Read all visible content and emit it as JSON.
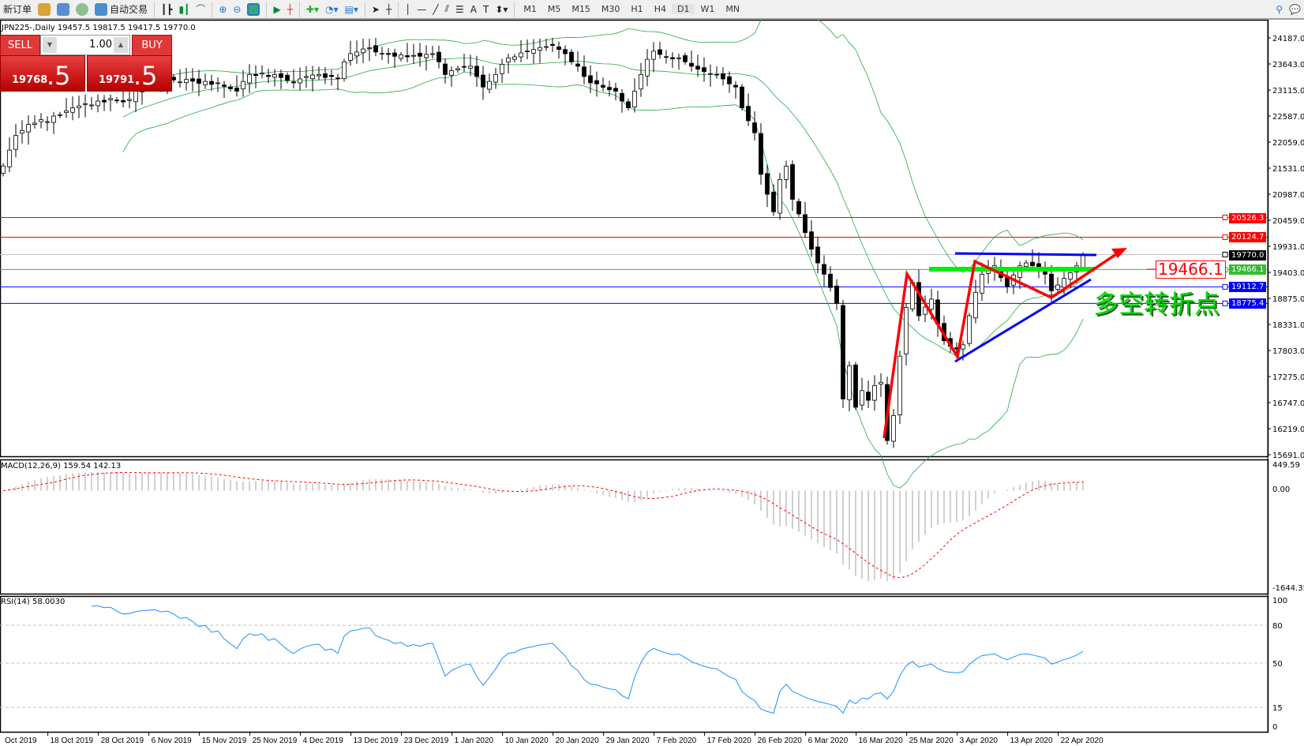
{
  "toolbar": {
    "new_order": "新订单",
    "auto_trading": "自动交易",
    "timeframes": [
      "M1",
      "M5",
      "M15",
      "M30",
      "H1",
      "H4",
      "D1",
      "W1",
      "MN"
    ]
  },
  "chart_title": "JPN225-,Daily  19457.5 19817.5 19417.5 19770.0",
  "trade_panel": {
    "sell_label": "SELL",
    "buy_label": "BUY",
    "lot": "1.00",
    "sell_price_main": "19768",
    "sell_price_big": ".5",
    "buy_price_main": "19791",
    "buy_price_big": ".5"
  },
  "annotation": {
    "level_label": "19466.1",
    "text": "多空转折点"
  },
  "colors": {
    "bands": "#22aa44",
    "bull": "#ffffff",
    "bear": "#000000",
    "macd_hist": "#c0c0c0",
    "macd_signal": "#ff0000",
    "rsi": "#1e90ff"
  },
  "chart_data": {
    "type": "candlestick",
    "symbol": "JPN225-",
    "timeframe": "Daily",
    "ylim": [
      15691,
      24187
    ],
    "yticks": [
      "24187.0",
      "23643.0",
      "23115.0",
      "22587.0",
      "22059.0",
      "21531.0",
      "20987.0",
      "20459.0",
      "19931.0",
      "19403.0",
      "18875.0",
      "18331.0",
      "17803.0",
      "17275.0",
      "16747.0",
      "16219.0",
      "15691.0"
    ],
    "xticks": [
      "Oct 2019",
      "18 Oct 2019",
      "28 Oct 2019",
      "6 Nov 2019",
      "15 Nov 2019",
      "25 Nov 2019",
      "4 Dec 2019",
      "13 Dec 2019",
      "23 Dec 2019",
      "1 Jan 2020",
      "10 Jan 2020",
      "20 Jan 2020",
      "29 Jan 2020",
      "7 Feb 2020",
      "17 Feb 2020",
      "26 Feb 2020",
      "6 Mar 2020",
      "16 Mar 2020",
      "25 Mar 2020",
      "3 Apr 2020",
      "13 Apr 2020",
      "22 Apr 2020"
    ],
    "close": [
      21575,
      21900,
      22200,
      22300,
      22423,
      22450,
      22520,
      22480,
      22593,
      22620,
      22700,
      22760,
      22800,
      22847,
      22820,
      22900,
      22880,
      22950,
      22910,
      22880,
      22932,
      23100,
      23186,
      23250,
      23300,
      23280,
      23356,
      23330,
      23290,
      23340,
      23305,
      23260,
      23300,
      23240,
      23271,
      23200,
      23150,
      23101,
      23300,
      23441,
      23420,
      23470,
      23400,
      23441,
      23380,
      23320,
      23271,
      23350,
      23400,
      23430,
      23441,
      23380,
      23400,
      23356,
      23700,
      23865,
      23900,
      23960,
      23984,
      23900,
      23870,
      23850,
      23813,
      23840,
      23800,
      23830,
      23813,
      23850,
      23865,
      23700,
      23441,
      23520,
      23560,
      23600,
      23610,
      23400,
      23186,
      23300,
      23441,
      23650,
      23780,
      23800,
      23880,
      23920,
      23950,
      23990,
      24010,
      24034,
      23950,
      23865,
      23700,
      23610,
      23400,
      23271,
      23250,
      23180,
      23130,
      23101,
      22900,
      22762,
      23100,
      23441,
      23750,
      23916,
      23850,
      23800,
      23760,
      23780,
      23700,
      23610,
      23550,
      23500,
      23460,
      23441,
      23350,
      23250,
      23186,
      22762,
      22500,
      22254,
      21406,
      21000,
      20643,
      21300,
      21575,
      20897,
      20600,
      20219,
      19880,
      19600,
      19371,
      19100,
      18777,
      16827,
      17506,
      16658,
      16997,
      16800,
      17100,
      17167,
      15980,
      16489,
      17700,
      18693,
      19202,
      18523,
      18700,
      18862,
      18353,
      18014,
      17900,
      17845,
      17930,
      18523,
      19000,
      19371,
      19450,
      19541,
      19300,
      19117,
      19350,
      19541,
      19600,
      19541,
      19450,
      19371,
      19032,
      19150,
      19286,
      19400,
      19541,
      19770
    ],
    "last_bar": {
      "open": 19457.5,
      "high": 19817.5,
      "low": 19417.5,
      "close": 19770.0
    },
    "price_lines": [
      {
        "value": "20526.3",
        "color": "#ff0000"
      },
      {
        "value": "20124.7",
        "color": "#ff0000"
      },
      {
        "value": "19770.0",
        "color": "#000000",
        "line": "#c0c0c0"
      },
      {
        "value": "19466.1",
        "color": "#33bb33"
      },
      {
        "value": "19112.7",
        "color": "#0000ff"
      },
      {
        "value": "18775.4",
        "color": "#0000ff"
      }
    ],
    "macd": {
      "label": "MACD(12,26,9) 159.54 142.13",
      "ylim": [
        -1644.35,
        449.59
      ],
      "ticks": [
        "449.59",
        "0.00",
        "-1644.35"
      ]
    },
    "rsi": {
      "label": "RSI(14) 58.0030",
      "ylim": [
        0,
        100
      ],
      "levels": [
        80,
        50,
        15
      ],
      "ticks": [
        "100",
        "80",
        "50",
        "15",
        "0"
      ]
    }
  }
}
